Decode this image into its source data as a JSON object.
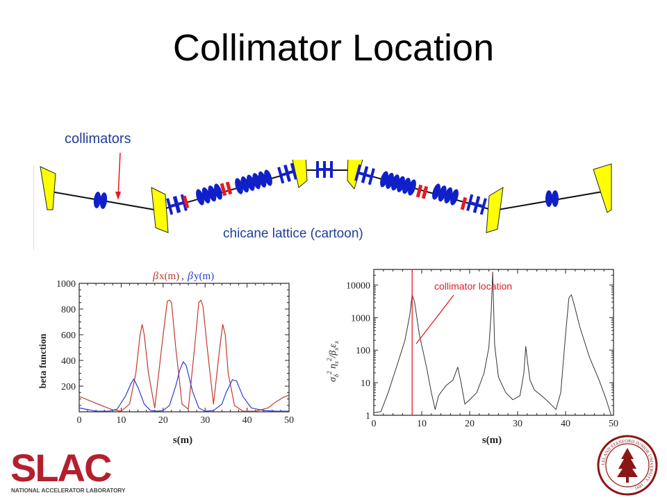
{
  "slide": {
    "title": "Collimator Location"
  },
  "lattice": {
    "collimators_label": "collimators",
    "chicane_label": "chicane lattice (cartoon)"
  },
  "colors": {
    "accent_blue": "#1f3e97",
    "red": "#e31b23",
    "dipole_yellow": "#ffff00",
    "quad_blue": "#1020c8"
  },
  "chart_data": [
    {
      "type": "line",
      "xlabel": "s(m)",
      "ylabel": "beta function",
      "xlim": [
        0,
        50
      ],
      "ylim": [
        0,
        1000
      ],
      "x_ticks": [
        0,
        10,
        20,
        30,
        40,
        50
      ],
      "y_ticks": [
        200,
        400,
        600,
        800,
        1000
      ],
      "legend": [
        {
          "symbol": "β",
          "text": "x(m)",
          "color": "#c0392b"
        },
        {
          "separator": ","
        },
        {
          "symbol": "β",
          "text": "y(m)",
          "color": "#2a3bd0"
        }
      ],
      "series": [
        {
          "name": "βx(m)",
          "color": "#c0392b",
          "x": [
            0,
            3,
            6,
            8,
            10,
            12,
            13.5,
            14.5,
            15,
            15.5,
            16.5,
            18,
            20,
            21,
            21.5,
            22,
            23,
            24.5,
            26,
            27.5,
            28.5,
            29,
            29.5,
            30.5,
            32,
            33.5,
            34.2,
            34.8,
            35.5,
            37,
            39,
            42,
            45,
            47,
            48.5,
            50
          ],
          "y": [
            120,
            80,
            40,
            15,
            5,
            60,
            300,
            600,
            680,
            600,
            300,
            30,
            600,
            860,
            870,
            850,
            500,
            60,
            20,
            500,
            850,
            870,
            820,
            500,
            60,
            500,
            680,
            600,
            300,
            50,
            5,
            5,
            30,
            80,
            110,
            130
          ]
        },
        {
          "name": "βy(m)",
          "color": "#2a3bd0",
          "x": [
            0,
            4,
            7,
            9,
            11,
            12.5,
            13,
            14,
            15.5,
            17,
            18.5,
            20,
            21.5,
            23,
            24,
            24.8,
            25.5,
            27,
            28.5,
            30,
            32,
            34,
            35,
            36.5,
            37.5,
            39,
            41,
            44,
            47,
            50
          ],
          "y": [
            30,
            5,
            5,
            20,
            120,
            230,
            255,
            190,
            60,
            10,
            5,
            10,
            50,
            200,
            330,
            390,
            360,
            160,
            30,
            5,
            10,
            60,
            150,
            250,
            240,
            120,
            30,
            10,
            5,
            5
          ]
        }
      ]
    },
    {
      "type": "line",
      "xlabel": "s(m)",
      "ylabel": "σδ² ηx² / βx εx",
      "yscale": "log",
      "xlim": [
        0,
        50
      ],
      "ylim": [
        1,
        30000
      ],
      "x_ticks": [
        0,
        10,
        20,
        30,
        40,
        50
      ],
      "y_ticks": [
        1,
        10,
        100,
        1000,
        10000
      ],
      "y_tick_labels": [
        "1",
        "10",
        "100",
        "1000",
        "10000"
      ],
      "annotation": {
        "text": "collimator location",
        "x": 8,
        "color": "#e31b23"
      },
      "series": [
        {
          "color": "#333333",
          "x": [
            0,
            1.5,
            3,
            5,
            6.5,
            7.5,
            8,
            8.5,
            9.5,
            11,
            12,
            12.8,
            13.5,
            15,
            16.5,
            17.5,
            18.2,
            19,
            20,
            21.5,
            23,
            24,
            24.5,
            24.8,
            25,
            25.2,
            25.5,
            26,
            27.5,
            29,
            30.5,
            31.3,
            31.7,
            32.1,
            32.6,
            33.5,
            35,
            36.5,
            38,
            39,
            40,
            40.7,
            41.2,
            41.8,
            43,
            45,
            47,
            48.5,
            49.5
          ],
          "y": [
            1.2,
            1.3,
            5,
            40,
            200,
            1200,
            5000,
            3000,
            300,
            30,
            5,
            1.5,
            4,
            8,
            12,
            30,
            10,
            2.2,
            3,
            5,
            20,
            120,
            1500,
            25000,
            2000,
            150,
            60,
            15,
            5,
            3,
            4,
            20,
            130,
            40,
            12,
            6,
            4,
            2.5,
            1.5,
            5,
            300,
            4000,
            5000,
            2500,
            500,
            60,
            12,
            3,
            1
          ]
        }
      ]
    }
  ],
  "logos": {
    "slac_text": "SLAC",
    "slac_subtitle": "NATIONAL ACCELERATOR LABORATORY",
    "seal_text": "LELAND STANFORD JUNIOR UNIVERSITY · 1891"
  }
}
